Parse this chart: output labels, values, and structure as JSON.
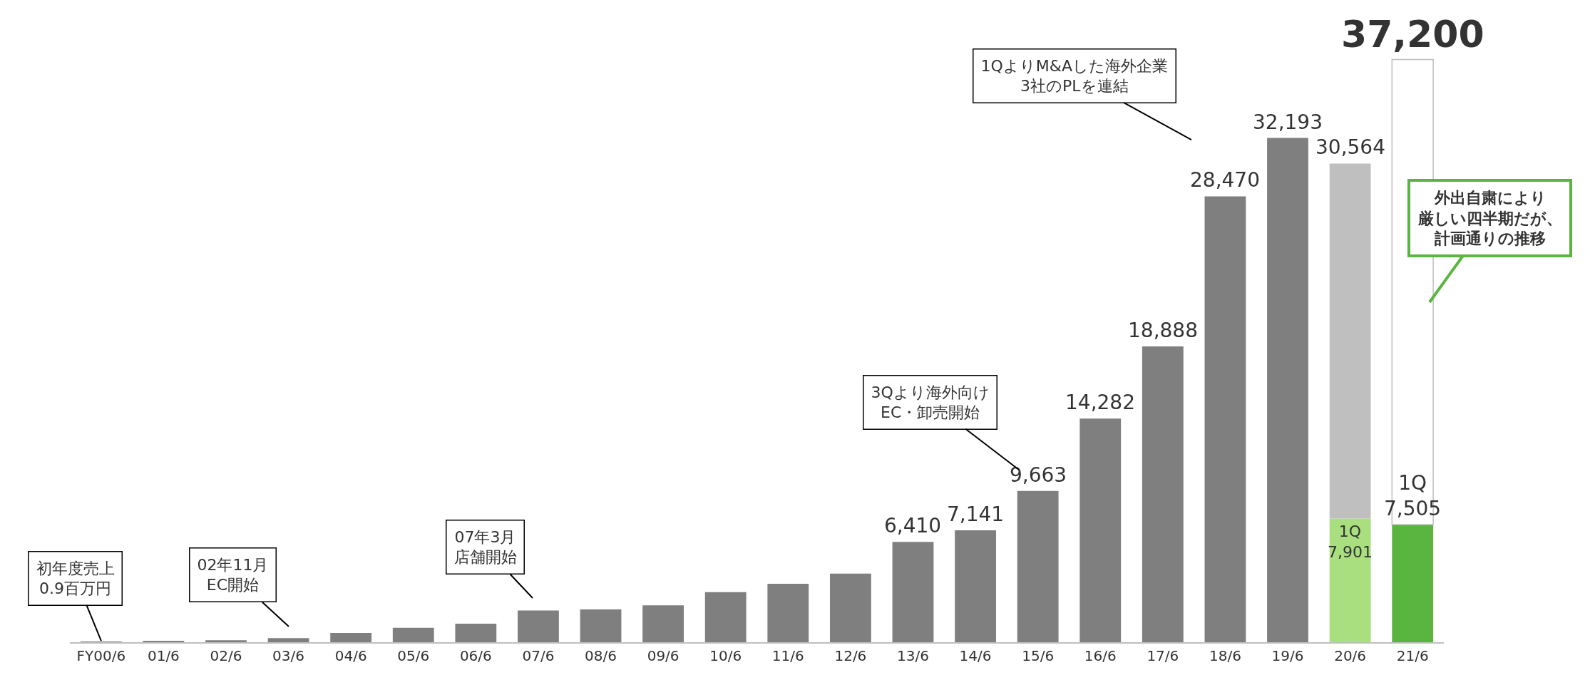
{
  "chart_data": {
    "type": "bar",
    "stacked": true,
    "categories": [
      "FY00/6",
      "01/6",
      "02/6",
      "03/6",
      "04/6",
      "05/6",
      "06/6",
      "07/6",
      "08/6",
      "09/6",
      "10/6",
      "11/6",
      "12/6",
      "13/6",
      "14/6",
      "15/6",
      "16/6",
      "17/6",
      "18/6",
      "19/6",
      "20/6",
      "21/6"
    ],
    "series": [
      {
        "colors": [
          "#7f7f7f",
          "#7f7f7f",
          "#7f7f7f",
          "#7f7f7f",
          "#7f7f7f",
          "#7f7f7f",
          "#7f7f7f",
          "#7f7f7f",
          "#7f7f7f",
          "#7f7f7f",
          "#7f7f7f",
          "#7f7f7f",
          "#7f7f7f",
          "#7f7f7f",
          "#7f7f7f",
          "#7f7f7f",
          "#7f7f7f",
          "#7f7f7f",
          "#7f7f7f",
          "#7f7f7f",
          "#a9df7f",
          "#5ab440"
        ],
        "values": [
          0.9,
          50,
          130,
          260,
          590,
          920,
          1180,
          2030,
          2090,
          2350,
          3200,
          3730,
          4380,
          6410,
          7141,
          9663,
          14282,
          18888,
          28470,
          32193,
          7901,
          7505
        ],
        "value_labels": [
          null,
          null,
          null,
          null,
          null,
          null,
          null,
          null,
          null,
          null,
          null,
          null,
          null,
          "6,410",
          "7,141",
          "9,663",
          "14,282",
          "18,888",
          "28,470",
          "32,193",
          "1Q\n7,901",
          "1Q\n7,505"
        ]
      },
      {
        "colors": [
          "#7f7f7f",
          "#7f7f7f",
          "#7f7f7f",
          "#7f7f7f",
          "#7f7f7f",
          "#7f7f7f",
          "#7f7f7f",
          "#7f7f7f",
          "#7f7f7f",
          "#7f7f7f",
          "#7f7f7f",
          "#7f7f7f",
          "#7f7f7f",
          "#7f7f7f",
          "#7f7f7f",
          "#7f7f7f",
          "#7f7f7f",
          "#7f7f7f",
          "#7f7f7f",
          "#7f7f7f",
          "#bfbfbf",
          "#ffffff"
        ],
        "values": [
          null,
          null,
          null,
          null,
          null,
          null,
          null,
          null,
          null,
          null,
          null,
          null,
          null,
          null,
          null,
          null,
          null,
          null,
          null,
          null,
          22663,
          29695
        ]
      }
    ],
    "totals": [
      null,
      null,
      null,
      null,
      null,
      null,
      null,
      null,
      null,
      null,
      null,
      null,
      null,
      null,
      null,
      null,
      null,
      null,
      null,
      null,
      "30,564",
      "37,200"
    ],
    "annotations": [
      "初年度売上\n0.9百万円",
      "02年11月\nEC開始",
      "07年3月店舗開始",
      "3Qより海外向け\nEC・卸売開始",
      "1QよりM&Aした海外企業\n3社のPLを連結",
      "外出自粛により厳しい四半期だが、計画通りの推移"
    ]
  }
}
